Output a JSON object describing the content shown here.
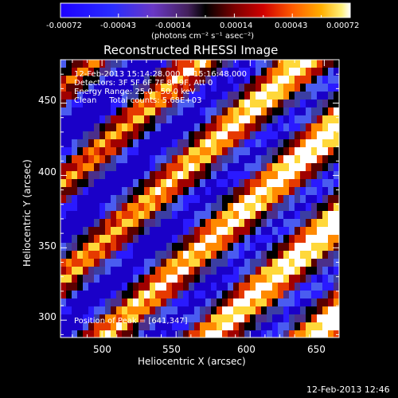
{
  "colorbar": {
    "tick_labels": [
      "-0.00072",
      "-0.00043",
      "-0.00014",
      "0.00014",
      "0.00043",
      "0.00072"
    ],
    "units_label": "(photons cm⁻² s⁻¹ asec⁻²)"
  },
  "plot": {
    "title": "Reconstructed RHESSI Image",
    "info_lines": [
      "12-Feb-2013 15:14:28.000 to 15:16:48.000",
      "Detectors: 3F 5F 6F 7F 8F 9F, Att 0",
      "Energy Range: 25.0 - 50.0 keV",
      "Clean     Total counts: 5.68E+03"
    ],
    "peak_text": "Position of Peak = [641,347]",
    "x_axis": {
      "label": "Heliocentric X (arcsec)",
      "ticks": [
        "500",
        "550",
        "600",
        "650"
      ],
      "range": [
        472,
        660
      ]
    },
    "y_axis": {
      "label": "Heliocentric Y (arcsec)",
      "ticks": [
        "300",
        "350",
        "400",
        "450"
      ],
      "range": [
        288,
        480
      ]
    }
  },
  "footer": {
    "timestamp": "12-Feb-2013 12:46"
  },
  "colors": {
    "background": "#000000",
    "foreground": "#ffffff",
    "colormap": [
      "#1a00c8",
      "#2a1aff",
      "#4a5cf0",
      "#3b3ea3",
      "#4b2f8a",
      "#000000",
      "#5a0000",
      "#a00000",
      "#e63a00",
      "#ff8a00",
      "#ffd83a",
      "#ffffff"
    ]
  }
}
